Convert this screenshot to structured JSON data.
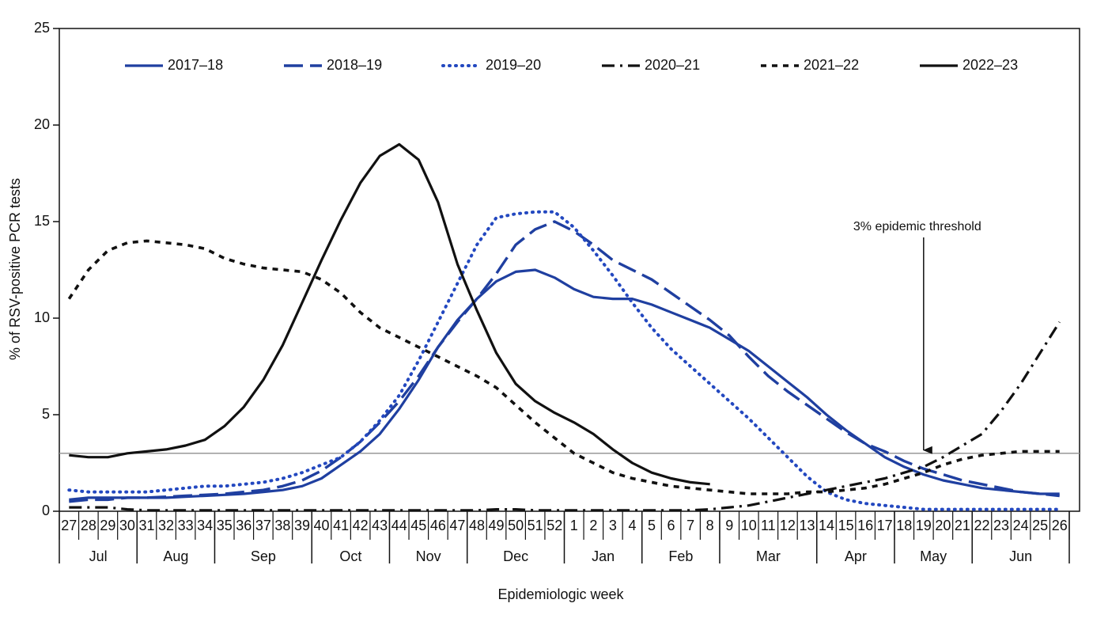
{
  "chart_data": {
    "type": "line",
    "x_label": "Epidemiologic week",
    "y_label": "% of RSV-positive PCR tests",
    "categories": [
      "27",
      "28",
      "29",
      "30",
      "31",
      "32",
      "33",
      "34",
      "35",
      "36",
      "37",
      "38",
      "39",
      "40",
      "41",
      "42",
      "43",
      "44",
      "45",
      "46",
      "47",
      "48",
      "49",
      "50",
      "51",
      "52",
      "1",
      "2",
      "3",
      "4",
      "5",
      "6",
      "7",
      "8",
      "9",
      "10",
      "11",
      "12",
      "13",
      "14",
      "15",
      "16",
      "17",
      "18",
      "19",
      "20",
      "21",
      "22",
      "23",
      "24",
      "25",
      "26"
    ],
    "months": [
      {
        "name": "Jul",
        "first_week": "27",
        "last_week": "30"
      },
      {
        "name": "Aug",
        "first_week": "31",
        "last_week": "34"
      },
      {
        "name": "Sep",
        "first_week": "35",
        "last_week": "39"
      },
      {
        "name": "Oct",
        "first_week": "40",
        "last_week": "43"
      },
      {
        "name": "Nov",
        "first_week": "44",
        "last_week": "47"
      },
      {
        "name": "Dec",
        "first_week": "48",
        "last_week": "52"
      },
      {
        "name": "Jan",
        "first_week": "1",
        "last_week": "4"
      },
      {
        "name": "Feb",
        "first_week": "5",
        "last_week": "8"
      },
      {
        "name": "Mar",
        "first_week": "9",
        "last_week": "13"
      },
      {
        "name": "Apr",
        "first_week": "14",
        "last_week": "17"
      },
      {
        "name": "May",
        "first_week": "18",
        "last_week": "21"
      },
      {
        "name": "Jun",
        "first_week": "22",
        "last_week": "26"
      }
    ],
    "ylim": [
      0,
      25
    ],
    "yticks": [
      0,
      5,
      10,
      15,
      20,
      25
    ],
    "threshold": {
      "value": 3,
      "label": "3% epidemic threshold",
      "week": "19"
    },
    "series": [
      {
        "name": "2017–18",
        "color": "#1f3fa0",
        "style": "solid",
        "values": [
          0.6,
          0.7,
          0.7,
          0.7,
          0.7,
          0.7,
          0.75,
          0.8,
          0.85,
          0.9,
          1.0,
          1.1,
          1.3,
          1.7,
          2.4,
          3.1,
          4.0,
          5.3,
          6.8,
          8.5,
          9.9,
          11.0,
          11.9,
          12.4,
          12.5,
          12.1,
          11.5,
          11.1,
          11.0,
          11.0,
          10.7,
          10.3,
          9.9,
          9.5,
          8.9,
          8.3,
          7.5,
          6.7,
          5.9,
          5.0,
          4.2,
          3.5,
          2.8,
          2.3,
          1.9,
          1.6,
          1.4,
          1.2,
          1.1,
          1.0,
          0.9,
          0.9
        ]
      },
      {
        "name": "2018–19",
        "color": "#1f3fa0",
        "style": "dashed",
        "values": [
          0.5,
          0.6,
          0.6,
          0.7,
          0.7,
          0.75,
          0.8,
          0.85,
          0.9,
          1.0,
          1.1,
          1.3,
          1.6,
          2.1,
          2.8,
          3.6,
          4.6,
          5.7,
          7.0,
          8.5,
          9.8,
          11.0,
          12.3,
          13.8,
          14.6,
          15.0,
          14.5,
          13.8,
          13.0,
          12.5,
          12.0,
          11.3,
          10.6,
          9.9,
          9.1,
          8.0,
          7.0,
          6.2,
          5.5,
          4.8,
          4.1,
          3.5,
          3.1,
          2.6,
          2.2,
          1.9,
          1.6,
          1.4,
          1.2,
          1.0,
          0.9,
          0.8
        ]
      },
      {
        "name": "2019–20",
        "color": "#2348c0",
        "style": "dotted",
        "values": [
          1.1,
          1.0,
          1.0,
          1.0,
          1.0,
          1.1,
          1.2,
          1.3,
          1.3,
          1.4,
          1.5,
          1.7,
          2.0,
          2.4,
          2.8,
          3.6,
          4.7,
          6.0,
          7.8,
          9.8,
          11.8,
          13.8,
          15.2,
          15.4,
          15.5,
          15.5,
          14.7,
          13.5,
          12.2,
          10.8,
          9.5,
          8.4,
          7.5,
          6.6,
          5.7,
          4.8,
          3.8,
          2.8,
          1.8,
          1.0,
          0.6,
          0.4,
          0.3,
          0.2,
          0.1,
          0.1,
          0.1,
          0.1,
          0.1,
          0.1,
          0.1,
          0.1
        ]
      },
      {
        "name": "2020–21",
        "color": "#111111",
        "style": "dashdot",
        "values": [
          0.2,
          0.2,
          0.2,
          0.1,
          0.05,
          0.05,
          0.05,
          0.05,
          0.05,
          0.05,
          0.05,
          0.05,
          0.05,
          0.05,
          0.05,
          0.05,
          0.05,
          0.05,
          0.05,
          0.05,
          0.05,
          0.05,
          0.1,
          0.1,
          0.05,
          0.05,
          0.05,
          0.05,
          0.05,
          0.05,
          0.05,
          0.05,
          0.05,
          0.1,
          0.2,
          0.3,
          0.5,
          0.7,
          0.9,
          1.1,
          1.3,
          1.5,
          1.7,
          2.0,
          2.3,
          2.8,
          3.4,
          4.0,
          5.2,
          6.6,
          8.2,
          9.8
        ]
      },
      {
        "name": "2021–22",
        "color": "#111111",
        "style": "shortdash",
        "values": [
          11.0,
          12.5,
          13.5,
          13.9,
          14.0,
          13.9,
          13.8,
          13.6,
          13.1,
          12.8,
          12.6,
          12.5,
          12.4,
          12.0,
          11.3,
          10.3,
          9.5,
          9.0,
          8.5,
          8.0,
          7.5,
          7.0,
          6.4,
          5.5,
          4.6,
          3.8,
          3.0,
          2.5,
          2.0,
          1.7,
          1.5,
          1.3,
          1.2,
          1.1,
          1.0,
          0.9,
          0.9,
          0.9,
          1.0,
          1.0,
          1.1,
          1.2,
          1.4,
          1.7,
          2.0,
          2.4,
          2.7,
          2.9,
          3.0,
          3.1,
          3.1,
          3.1
        ]
      },
      {
        "name": "2022–23",
        "color": "#111111",
        "style": "solid",
        "values": [
          2.9,
          2.8,
          2.8,
          3.0,
          3.1,
          3.2,
          3.4,
          3.7,
          4.4,
          5.4,
          6.8,
          8.6,
          10.8,
          13.0,
          15.1,
          17.0,
          18.4,
          19.0,
          18.2,
          16.0,
          12.8,
          10.4,
          8.2,
          6.6,
          5.7,
          5.1,
          4.6,
          4.0,
          3.2,
          2.5,
          2.0,
          1.7,
          1.5,
          1.4,
          null,
          null,
          null,
          null,
          null,
          null,
          null,
          null,
          null,
          null,
          null,
          null,
          null,
          null,
          null,
          null,
          null,
          null
        ]
      }
    ]
  }
}
